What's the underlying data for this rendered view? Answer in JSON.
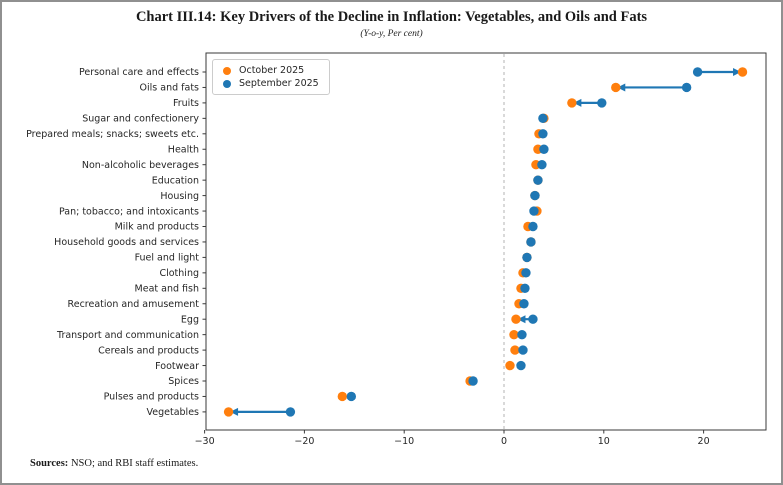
{
  "title": "Chart III.14: Key Drivers of the Decline in Inflation: Vegetables, and Oils and Fats",
  "subtitle": "(Y-o-y, Per cent)",
  "sources": {
    "label": "Sources:",
    "text": " NSO; and RBI staff estimates."
  },
  "legend": {
    "items": [
      {
        "label": "October 2025",
        "color": "#ff7f0e"
      },
      {
        "label": "September 2025",
        "color": "#1f77b4"
      }
    ]
  },
  "colors": {
    "october": "#ff7f0e",
    "september": "#1f77b4",
    "axis": "#3a3a3a",
    "tick_label": "#262626",
    "zero_line": "#b3b3b3",
    "outer_border": "#909090"
  },
  "chart_data": {
    "type": "scatter",
    "variant": "dumbbell-dot-plot",
    "title": "Chart III.14: Key Drivers of the Decline in Inflation: Vegetables, and Oils and Fats",
    "subtitle": "(Y-o-y, Per cent)",
    "xlabel": "",
    "ylabel": "",
    "xlim": [
      -30,
      26.3
    ],
    "xticks": [
      -30,
      -20,
      -10,
      0,
      10,
      20
    ],
    "grid": false,
    "zero_reference_line": true,
    "legend_position": "upper left",
    "categories": [
      "Personal care and effects",
      "Oils and fats",
      "Fruits",
      "Sugar and confectionery",
      "Prepared meals; snacks; sweets etc.",
      "Health",
      "Non-alcoholic beverages",
      "Education",
      "Housing",
      "Pan; tobacco; and intoxicants",
      "Milk and products",
      "Household goods and services",
      "Fuel and light",
      "Clothing",
      "Meat and fish",
      "Recreation and amusement",
      "Egg",
      "Transport and communication",
      "Cereals and products",
      "Footwear",
      "Spices",
      "Pulses and products",
      "Vegetables"
    ],
    "series": [
      {
        "name": "October 2025",
        "color": "#ff7f0e",
        "values": [
          23.9,
          11.2,
          6.8,
          4.0,
          3.5,
          3.4,
          3.2,
          3.4,
          3.1,
          3.3,
          2.4,
          2.7,
          2.3,
          1.9,
          1.7,
          1.5,
          1.2,
          1.0,
          1.1,
          0.6,
          -3.4,
          -16.2,
          -27.6
        ]
      },
      {
        "name": "September 2025",
        "color": "#1f77b4",
        "values": [
          19.4,
          18.3,
          9.8,
          3.9,
          3.9,
          4.0,
          3.8,
          3.4,
          3.1,
          3.0,
          2.9,
          2.7,
          2.3,
          2.2,
          2.1,
          2.0,
          2.9,
          1.8,
          1.9,
          1.7,
          -3.1,
          -15.3,
          -21.4
        ]
      }
    ],
    "arrow_rule": "blue arrow drawn from September dot to October dot when |change| >= 1.5",
    "arrow_categories": [
      "Personal care and effects",
      "Oils and fats",
      "Fruits",
      "Egg",
      "Vegetables"
    ]
  }
}
